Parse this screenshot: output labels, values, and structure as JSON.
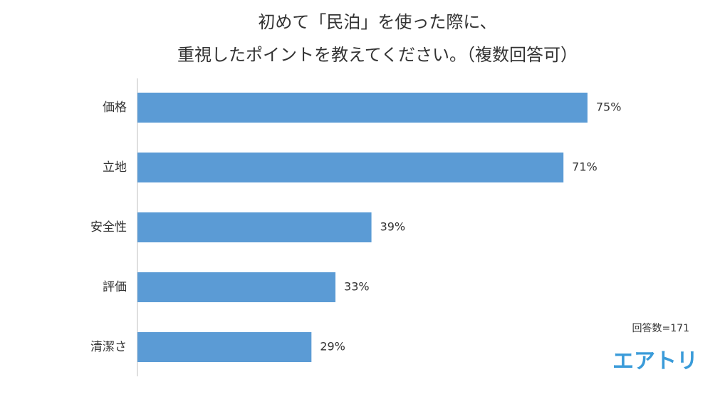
{
  "chart_data": {
    "type": "barh",
    "title": [
      "初めて「民泊」を使った際に、",
      "重視したポイントを教えてください。（複数回答可）"
    ],
    "categories": [
      "価格",
      "立地",
      "安全性",
      "評価",
      "清潔さ"
    ],
    "values": [
      75,
      71,
      39,
      33,
      29
    ],
    "value_labels": [
      "75%",
      "71%",
      "39%",
      "33%",
      "29%"
    ],
    "color": "#5b9bd5",
    "xlim": [
      0,
      80
    ],
    "annotation": "回答数=171",
    "logo": "エアトリ"
  }
}
